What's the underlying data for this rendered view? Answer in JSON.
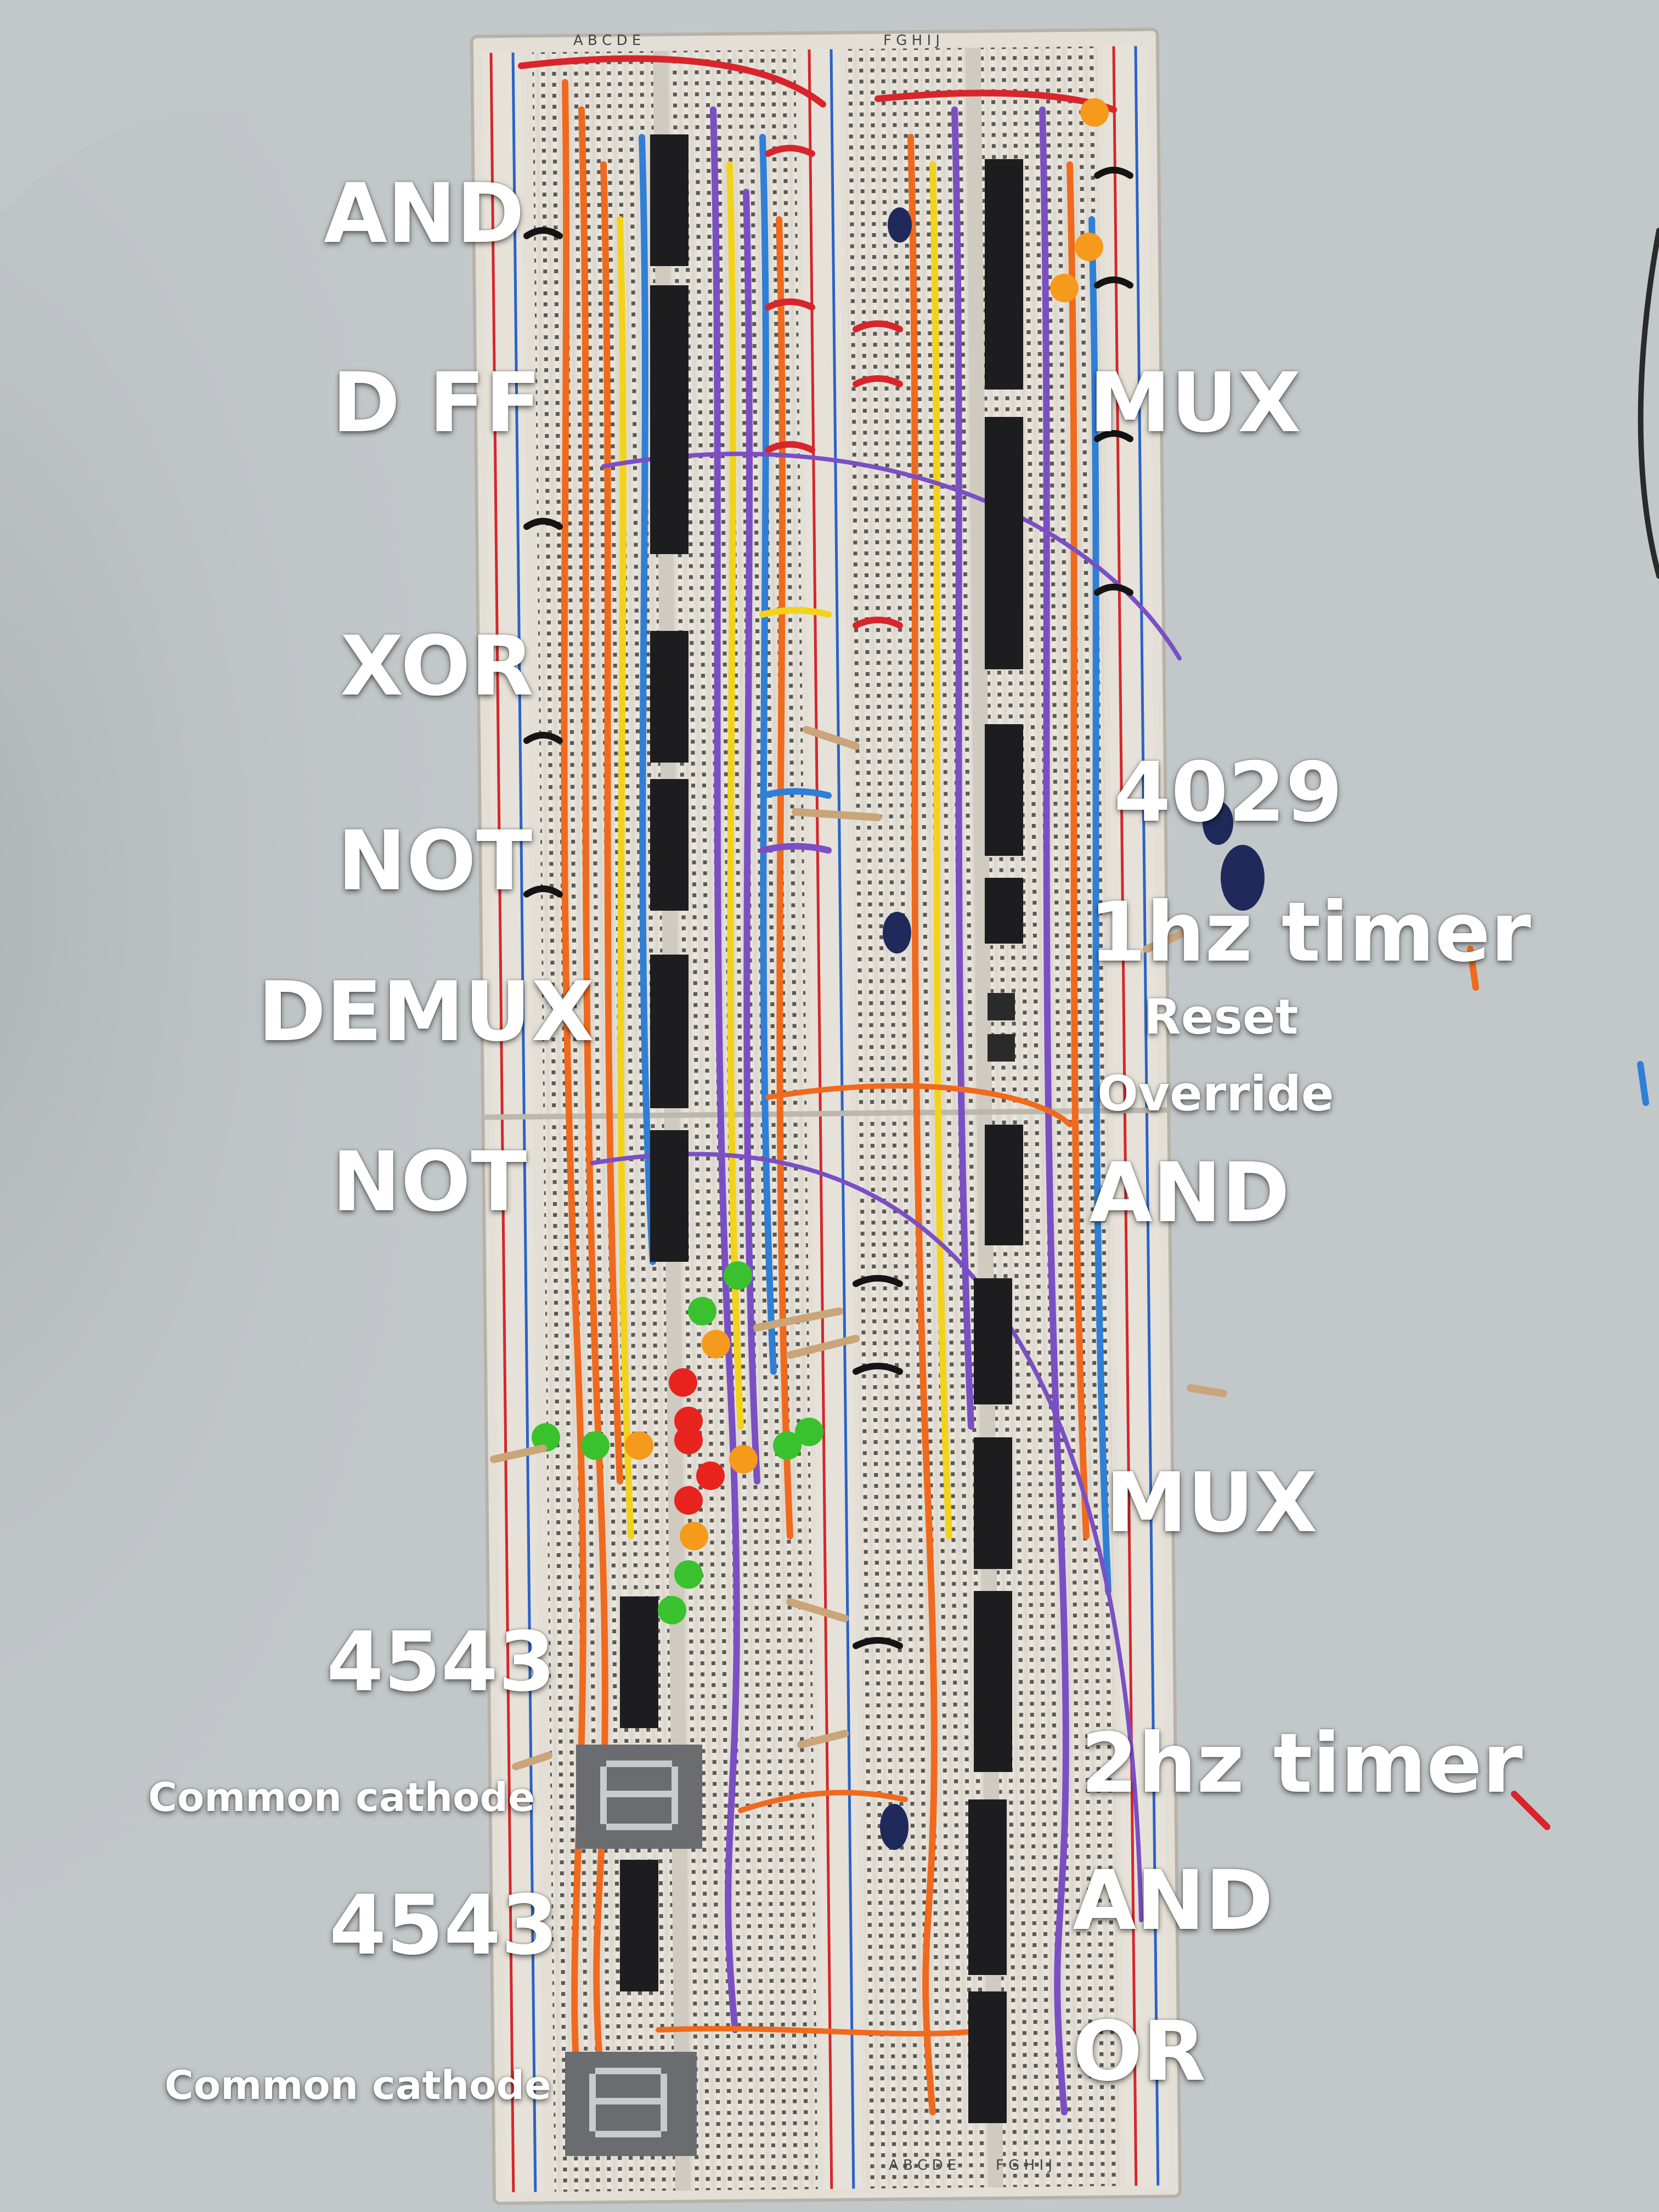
{
  "labels": {
    "left": {
      "and": "AND",
      "dff": "D FF",
      "xor": "XOR",
      "not1": "NOT",
      "demux": "DEMUX",
      "not2": "NOT",
      "bcd1": "4543",
      "cathode1": "Common cathode",
      "bcd2": "4543",
      "cathode2": "Common cathode"
    },
    "right": {
      "mux1": "MUX",
      "counter": "4029",
      "timer1": "1hz timer",
      "reset": "Reset",
      "override": "Override",
      "and1": "AND",
      "mux2": "MUX",
      "timer2": "2hz timer",
      "and2": "AND",
      "or": "OR"
    }
  },
  "breadboard_markings": {
    "columns_left": "A B C D E",
    "columns_right": "F G H I J"
  },
  "colors": {
    "table": "#c2c7ca",
    "board": "#e9e5dc",
    "ic": "#1d1d1f",
    "wire_orange": "#f06a1e",
    "wire_yellow": "#f2d31a",
    "wire_purple": "#7b4fc4",
    "wire_blue": "#2f7fd6",
    "wire_red": "#d8252c",
    "wire_black": "#141414",
    "led_red": "#e8231d",
    "led_green": "#39c22d",
    "led_orange": "#f59a1b"
  }
}
